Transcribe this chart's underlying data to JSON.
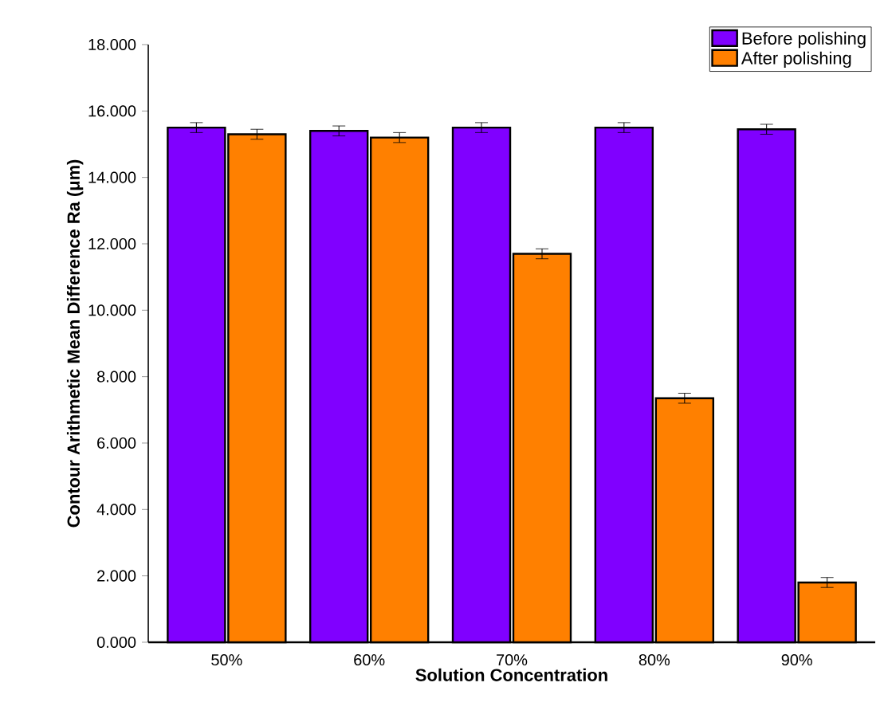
{
  "chart_data": {
    "type": "bar",
    "xlabel": "Solution Concentration",
    "ylabel": "Contour Arithmetic Mean Difference Ra (μm)",
    "categories": [
      "50%",
      "60%",
      "70%",
      "80%",
      "90%"
    ],
    "series": [
      {
        "name": "Before polishing",
        "color": "#8000ff",
        "values": [
          15.5,
          15.4,
          15.5,
          15.5,
          15.45
        ],
        "errors": [
          0.15,
          0.15,
          0.15,
          0.15,
          0.15
        ]
      },
      {
        "name": "After polishing",
        "color": "#ff8000",
        "values": [
          15.3,
          15.2,
          11.7,
          7.35,
          1.8
        ],
        "errors": [
          0.15,
          0.15,
          0.15,
          0.15,
          0.15
        ]
      }
    ],
    "ylim": [
      0,
      18
    ],
    "yticks": [
      {
        "value": 0,
        "label": "0.000"
      },
      {
        "value": 2,
        "label": "2.000"
      },
      {
        "value": 4,
        "label": "4.000"
      },
      {
        "value": 6,
        "label": "6.000"
      },
      {
        "value": 8,
        "label": "8.000"
      },
      {
        "value": 10,
        "label": "10.000"
      },
      {
        "value": 12,
        "label": "12.000"
      },
      {
        "value": 14,
        "label": "14.000"
      },
      {
        "value": 16,
        "label": "16.000"
      },
      {
        "value": 18,
        "label": "18.000"
      }
    ],
    "legend": "top right",
    "grid": false
  }
}
